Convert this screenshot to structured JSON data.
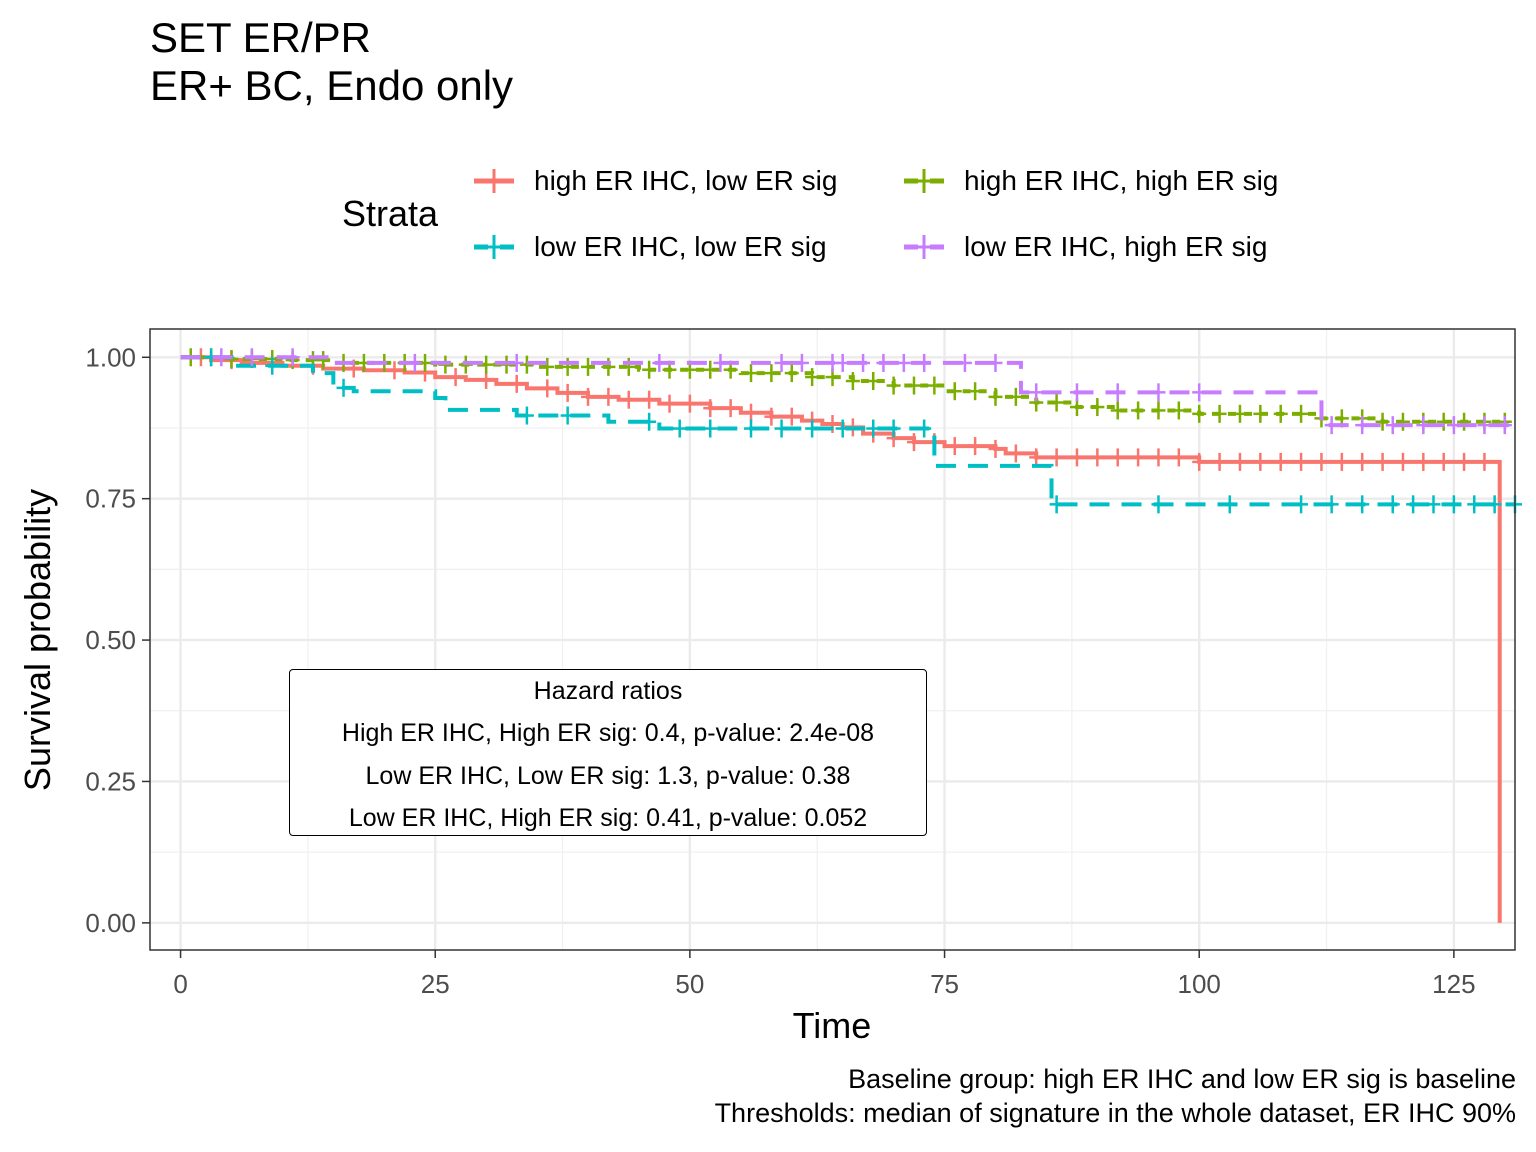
{
  "title_lines": [
    "SET ER/PR",
    "ER+ BC, Endo only"
  ],
  "caption_lines": [
    "Baseline group: high ER IHC and low ER sig is baseline",
    "Thresholds: median of signature in the whole dataset, ER IHC 90%"
  ],
  "hazard_box": {
    "title": "Hazard ratios",
    "lines": [
      "High ER IHC, High ER sig: 0.4, p-value: 2.4e-08",
      "Low ER IHC, Low ER sig: 1.3, p-value: 0.38",
      "Low ER IHC, High ER sig: 0.41, p-value: 0.052"
    ]
  },
  "legend": {
    "title": "Strata"
  },
  "chart_data": {
    "type": "line",
    "title": "",
    "xlabel": "Time",
    "ylabel": "Survival probability",
    "xlim": [
      -3,
      131
    ],
    "ylim": [
      -0.048,
      1.05
    ],
    "x_ticks": [
      0,
      25,
      50,
      75,
      100,
      125
    ],
    "x_tick_labels": [
      "0",
      "25",
      "50",
      "75",
      "100",
      "125"
    ],
    "y_ticks": [
      0,
      0.25,
      0.5,
      0.75,
      1.0
    ],
    "y_tick_labels": [
      "0.00",
      "0.25",
      "0.50",
      "0.75",
      "1.00"
    ],
    "grid": true,
    "legend_position": "top",
    "series": [
      {
        "name": "high ER IHC, low ER sig",
        "color": "#F8766D",
        "dash": "solid",
        "steps": [
          [
            0,
            1.0
          ],
          [
            3,
            0.995
          ],
          [
            6,
            0.99
          ],
          [
            10,
            0.985
          ],
          [
            14,
            0.98
          ],
          [
            18,
            0.977
          ],
          [
            22,
            0.973
          ],
          [
            25,
            0.965
          ],
          [
            28,
            0.96
          ],
          [
            31,
            0.953
          ],
          [
            34,
            0.945
          ],
          [
            37,
            0.937
          ],
          [
            40,
            0.93
          ],
          [
            43,
            0.925
          ],
          [
            47,
            0.918
          ],
          [
            52,
            0.91
          ],
          [
            55,
            0.902
          ],
          [
            58,
            0.895
          ],
          [
            61,
            0.888
          ],
          [
            63,
            0.882
          ],
          [
            65,
            0.876
          ],
          [
            67,
            0.865
          ],
          [
            70,
            0.857
          ],
          [
            72,
            0.85
          ],
          [
            75,
            0.843
          ],
          [
            80,
            0.838
          ],
          [
            81,
            0.83
          ],
          [
            84,
            0.823
          ],
          [
            100,
            0.815
          ],
          [
            129.5,
            0.815
          ],
          [
            129.5,
            0.0
          ]
        ],
        "censor_x": [
          2,
          5,
          9,
          13,
          17,
          21,
          24,
          27,
          30,
          33,
          36,
          38,
          40,
          42,
          44,
          46,
          48,
          50,
          52,
          54,
          56,
          58,
          60,
          62,
          64,
          66,
          68,
          70,
          72,
          74,
          76,
          78,
          80,
          82,
          84,
          86,
          88,
          90,
          92,
          94,
          96,
          98,
          100,
          102,
          104,
          106,
          108,
          110,
          112,
          114,
          116,
          118,
          120,
          122,
          124,
          126,
          128
        ]
      },
      {
        "name": "high ER IHC, high ER sig",
        "color": "#7CAE00",
        "dash": "8,8",
        "steps": [
          [
            0,
            1.0
          ],
          [
            5,
            0.997
          ],
          [
            10,
            0.995
          ],
          [
            15,
            0.99
          ],
          [
            25,
            0.987
          ],
          [
            35,
            0.983
          ],
          [
            45,
            0.978
          ],
          [
            55,
            0.972
          ],
          [
            62,
            0.965
          ],
          [
            66,
            0.958
          ],
          [
            70,
            0.95
          ],
          [
            75,
            0.94
          ],
          [
            80,
            0.93
          ],
          [
            84,
            0.92
          ],
          [
            88,
            0.912
          ],
          [
            92,
            0.906
          ],
          [
            100,
            0.9
          ],
          [
            112,
            0.892
          ],
          [
            118,
            0.886
          ],
          [
            130,
            0.886
          ]
        ],
        "censor_x": [
          1,
          3,
          5,
          7,
          9,
          11,
          13,
          14,
          16,
          18,
          20,
          22,
          24,
          26,
          28,
          30,
          32,
          34,
          36,
          38,
          40,
          42,
          44,
          46,
          48,
          50,
          52,
          54,
          56,
          58,
          60,
          62,
          64,
          66,
          68,
          70,
          72,
          74,
          76,
          78,
          80,
          82,
          84,
          86,
          88,
          90,
          92,
          94,
          96,
          98,
          100,
          102,
          104,
          106,
          108,
          110,
          112,
          114,
          116,
          118,
          120,
          122,
          124,
          126,
          128,
          130
        ]
      },
      {
        "name": "low ER IHC, low ER sig",
        "color": "#00BFC4",
        "dash": "20,12",
        "steps": [
          [
            0,
            1.0
          ],
          [
            5,
            0.985
          ],
          [
            13,
            0.972
          ],
          [
            15,
            0.946
          ],
          [
            17,
            0.94
          ],
          [
            25,
            0.928
          ],
          [
            26,
            0.907
          ],
          [
            33,
            0.897
          ],
          [
            42,
            0.886
          ],
          [
            47,
            0.874
          ],
          [
            65,
            0.874
          ],
          [
            73,
            0.874
          ],
          [
            74,
            0.808
          ],
          [
            80,
            0.808
          ],
          [
            85,
            0.808
          ],
          [
            85.5,
            0.74
          ],
          [
            131,
            0.74
          ]
        ],
        "censor_x": [
          3,
          9,
          16,
          34,
          38,
          46,
          49,
          52,
          56,
          59,
          62,
          65,
          68,
          70,
          73,
          86,
          96,
          103,
          110,
          113,
          116,
          119,
          121,
          123,
          125,
          127,
          129,
          131
        ]
      },
      {
        "name": "low ER IHC, high ER sig",
        "color": "#C77CFF",
        "dash": "20,12",
        "steps": [
          [
            0,
            1.0
          ],
          [
            12,
            1.0
          ],
          [
            15,
            0.99
          ],
          [
            30,
            0.99
          ],
          [
            82,
            0.99
          ],
          [
            82.5,
            0.938
          ],
          [
            97,
            0.938
          ],
          [
            112,
            0.88
          ],
          [
            131,
            0.88
          ]
        ],
        "censor_x": [
          4,
          7,
          11,
          23,
          33,
          47,
          53,
          59,
          61,
          64,
          65,
          67,
          69,
          71,
          73,
          77,
          80,
          84,
          88,
          92,
          96,
          100,
          113,
          116,
          119,
          122,
          125,
          128,
          130
        ]
      }
    ]
  }
}
